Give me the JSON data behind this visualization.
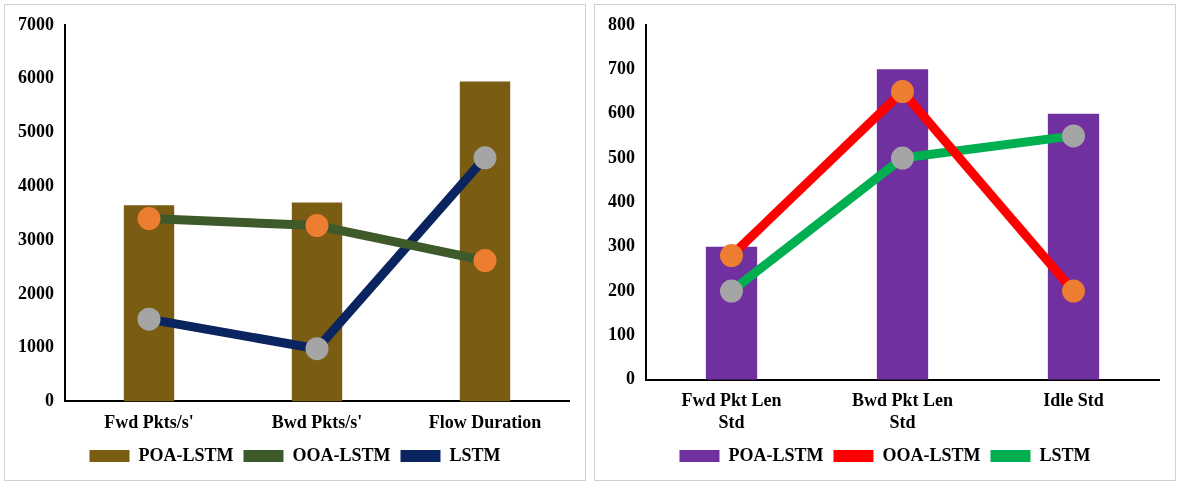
{
  "chart_data": [
    {
      "type": "bar",
      "categories": [
        "Fwd Pkts/s'",
        "Bwd Pkts/s'",
        "Flow Duration"
      ],
      "ylim": [
        0,
        7000
      ],
      "yticks": [
        0,
        1000,
        2000,
        3000,
        4000,
        5000,
        6000,
        7000
      ],
      "grid": false,
      "legend": "bottom",
      "marker": "circle",
      "series": [
        {
          "name": "POA-LSTM",
          "color": "#7a5c12",
          "values": [
            3650,
            3700,
            5950
          ]
        },
        {
          "type": "line",
          "name": "OOA-LSTM",
          "color": "#3e5a2a",
          "colors": [
            "#ed7d31",
            "#ed7d31",
            "#ed7d31"
          ],
          "values": [
            3400,
            3270,
            2620
          ]
        },
        {
          "type": "line",
          "name": "LSTM",
          "color": "#0a2460",
          "colors": [
            "#a5a5a5",
            "#a5a5a5",
            "#a5a5a5"
          ],
          "values": [
            1530,
            980,
            4530
          ]
        }
      ]
    },
    {
      "type": "bar",
      "categories": [
        "Fwd Pkt Len Std",
        "Bwd Pkt Len Std",
        "Idle Std"
      ],
      "ylim": [
        0,
        800
      ],
      "yticks": [
        0,
        100,
        200,
        300,
        400,
        500,
        600,
        700,
        800
      ],
      "grid": false,
      "legend": "bottom",
      "marker": "circle",
      "series": [
        {
          "name": "POA-LSTM",
          "color": "#7030a0",
          "values": [
            300,
            700,
            600
          ]
        },
        {
          "type": "line",
          "name": "OOA-LSTM",
          "color": "#ff0000",
          "colors": [
            "#ed7d31",
            "#ed7d31",
            "#ed7d31"
          ],
          "values": [
            280,
            650,
            200
          ]
        },
        {
          "type": "line",
          "name": "LSTM",
          "color": "#00b050",
          "colors": [
            "#a5a5a5",
            "#a5a5a5",
            "#a5a5a5"
          ],
          "values": [
            200,
            500,
            550
          ]
        }
      ]
    }
  ]
}
